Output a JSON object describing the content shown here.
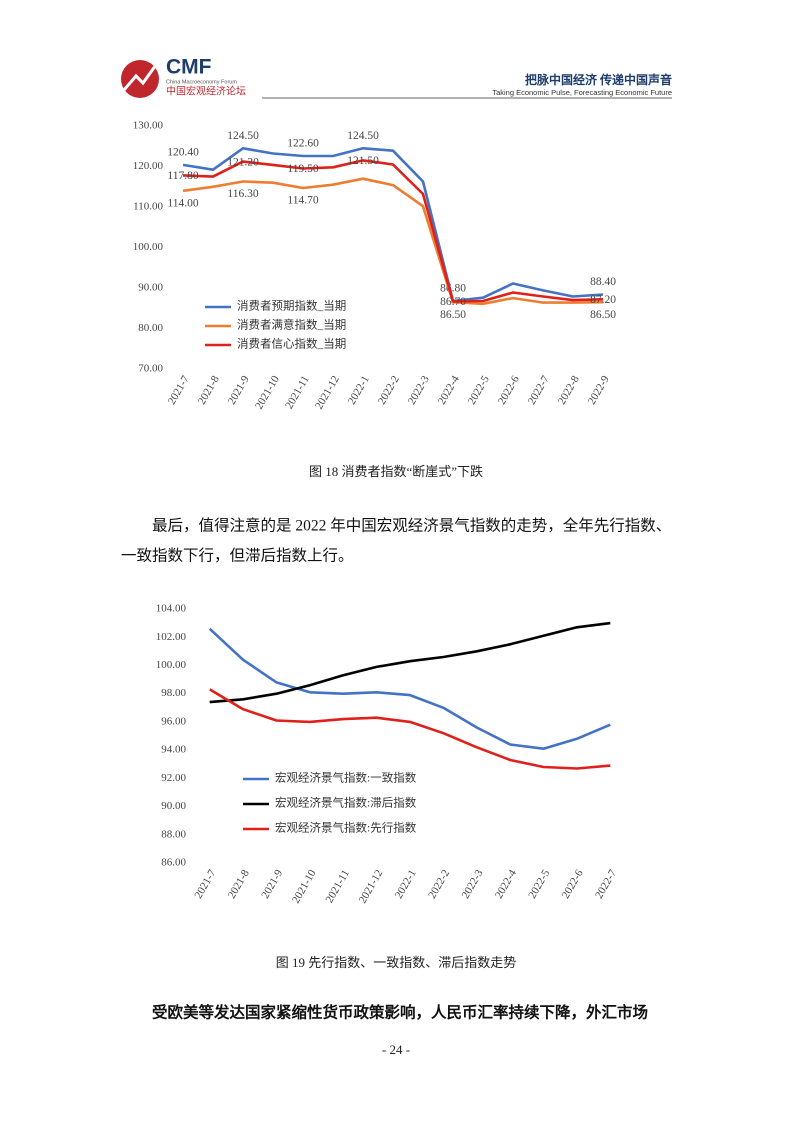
{
  "header": {
    "logo": "CMF",
    "logo_subtitle": "China Macroeconomy Forum",
    "logo_chinese": "中国宏观经济论坛",
    "slogan": "把脉中国经济  传递中国声音",
    "slogan_english": "Taking Economic Pulse, Forecasting Economic Future"
  },
  "chart_data": [
    {
      "type": "line",
      "categories": [
        "2021-7",
        "2021-8",
        "2021-9",
        "2021-10",
        "2021-11",
        "2021-12",
        "2022-1",
        "2022-2",
        "2022-3",
        "2022-4",
        "2022-5",
        "2022-6",
        "2022-7",
        "2022-8",
        "2022-9"
      ],
      "series": [
        {
          "name": "消费者预期指数_当期",
          "color": "#4472c4",
          "values": [
            120.4,
            119.2,
            124.5,
            123.2,
            122.6,
            122.6,
            124.5,
            123.9,
            116.3,
            86.8,
            87.6,
            91.1,
            89.4,
            87.9,
            88.4
          ],
          "value_labels": [
            "120.40",
            null,
            "124.50",
            null,
            "122.60",
            null,
            "124.50",
            null,
            null,
            "86.80",
            null,
            null,
            null,
            null,
            "88.40"
          ]
        },
        {
          "name": "消费者满意指数_当期",
          "color": "#ed7d31",
          "values": [
            114.0,
            115.0,
            116.3,
            116.0,
            114.7,
            115.5,
            117.0,
            115.4,
            110.2,
            86.5,
            86.1,
            87.5,
            86.4,
            86.4,
            86.5
          ],
          "value_labels": [
            "114.00",
            null,
            "116.30",
            null,
            "114.70",
            null,
            null,
            null,
            null,
            "86.50",
            null,
            null,
            null,
            null,
            "86.50"
          ]
        },
        {
          "name": "消费者信心指数_当期",
          "color": "#e0201b",
          "values": [
            117.8,
            117.5,
            121.2,
            120.4,
            119.5,
            119.8,
            121.5,
            120.5,
            113.2,
            86.7,
            86.8,
            88.9,
            87.9,
            87.0,
            87.2
          ],
          "value_labels": [
            "117.80",
            null,
            "121.20",
            null,
            "119.50",
            null,
            "121.50",
            null,
            null,
            "86.70",
            null,
            null,
            null,
            null,
            "87.20"
          ]
        }
      ],
      "ylim": [
        70,
        130
      ],
      "yticks": [
        {
          "value": 70,
          "label": "70.00"
        },
        {
          "value": 80,
          "label": "80.00"
        },
        {
          "value": 90,
          "label": "90.00"
        },
        {
          "value": 100,
          "label": "100.00"
        },
        {
          "value": 110,
          "label": "110.00"
        },
        {
          "value": 120,
          "label": "120.00"
        },
        {
          "value": 130,
          "label": "130.00"
        }
      ],
      "grid": false,
      "legend": "lower left",
      "caption": "图 18  消费者指数“断崖式”下跌"
    },
    {
      "type": "line",
      "categories": [
        "2021-7",
        "2021-8",
        "2021-9",
        "2021-10",
        "2021-11",
        "2021-12",
        "2022-1",
        "2022-2",
        "2022-3",
        "2022-4",
        "2022-5",
        "2022-6",
        "2022-7"
      ],
      "series": [
        {
          "name": "宏观经济景气指数:一致指数",
          "color": "#4472c4",
          "values": [
            102.6,
            100.4,
            98.8,
            98.1,
            98.0,
            98.1,
            97.9,
            97.0,
            95.6,
            94.4,
            94.1,
            94.8,
            95.8
          ]
        },
        {
          "name": "宏观经济景气指数:滞后指数",
          "color": "#000000",
          "values": [
            97.4,
            97.6,
            98.0,
            98.6,
            99.3,
            99.9,
            100.3,
            100.6,
            101.0,
            101.5,
            102.1,
            102.7,
            103.0
          ]
        },
        {
          "name": "宏观经济景气指数:先行指数",
          "color": "#e0201b",
          "values": [
            98.3,
            96.9,
            96.1,
            96.0,
            96.2,
            96.3,
            96.0,
            95.2,
            94.2,
            93.3,
            92.8,
            92.7,
            92.9
          ]
        }
      ],
      "ylim": [
        86,
        104
      ],
      "yticks": [
        {
          "value": 86,
          "label": "86.00"
        },
        {
          "value": 88,
          "label": "88.00"
        },
        {
          "value": 90,
          "label": "90.00"
        },
        {
          "value": 92,
          "label": "92.00"
        },
        {
          "value": 94,
          "label": "94.00"
        },
        {
          "value": 96,
          "label": "96.00"
        },
        {
          "value": 98,
          "label": "98.00"
        },
        {
          "value": 100,
          "label": "100.00"
        },
        {
          "value": 102,
          "label": "102.00"
        },
        {
          "value": 104,
          "label": "104.00"
        }
      ],
      "grid": false,
      "legend": "lower left",
      "caption": "图 19  先行指数、一致指数、滞后指数走势"
    }
  ],
  "document": {
    "paragraph_1": [
      "最后，值得注意的是 2022 年中国宏观经济景气指数的走势，全年先行指数、",
      "一致指数下行，但滞后指数上行。"
    ],
    "paragraph_2": "受欧美等发达国家紧缩性货币政策影响，人民币汇率持续下降，外汇市场",
    "page_number": "- 24 -"
  }
}
